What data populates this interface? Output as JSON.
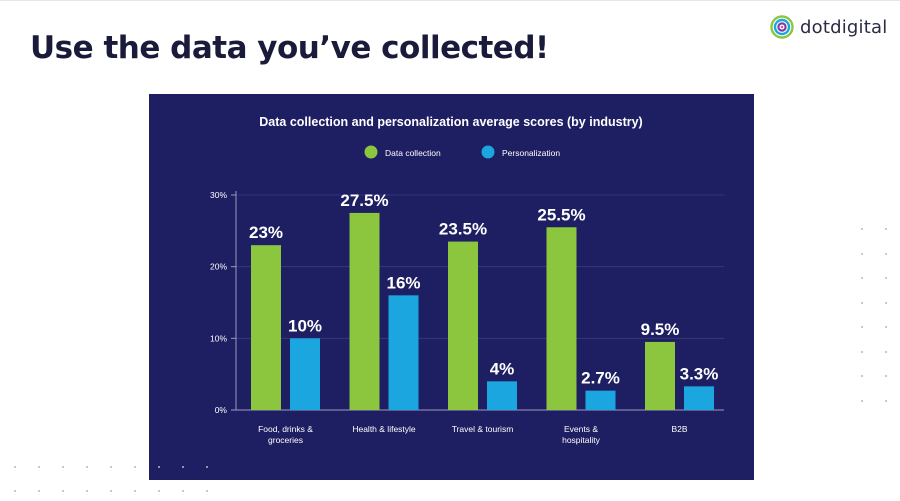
{
  "slide": {
    "title": "Use the data you’ve collected!",
    "brand_name": "dotdigital"
  },
  "colors": {
    "panel_background": "#1e1e62",
    "data_collection": "#8cc63f",
    "personalization": "#1ca6e0",
    "title_text": "#1a1a3b"
  },
  "chart_data": {
    "type": "bar",
    "title": "Data collection and personalization average scores (by industry)",
    "categories": [
      [
        "Food, drinks &",
        "groceries"
      ],
      [
        "Health & lifestyle"
      ],
      [
        "Travel & tourism"
      ],
      [
        "Events &",
        "hospitality"
      ],
      [
        "B2B"
      ]
    ],
    "series": [
      {
        "name": "Data collection",
        "color": "#8cc63f",
        "values": [
          23,
          27.5,
          23.5,
          25.5,
          9.5
        ],
        "labels": [
          "23%",
          "27.5%",
          "23.5%",
          "25.5%",
          "9.5%"
        ]
      },
      {
        "name": "Personalization",
        "color": "#1ca6e0",
        "values": [
          10,
          16,
          4,
          2.7,
          3.3
        ],
        "labels": [
          "10%",
          "16%",
          "4%",
          "2.7%",
          "3.3%"
        ]
      }
    ],
    "ylim": [
      0,
      30
    ],
    "yticks": [
      0,
      10,
      20,
      30
    ],
    "ytick_labels": [
      "0%",
      "10%",
      "20%",
      "30%"
    ],
    "xlabel": "",
    "ylabel": "",
    "grid": true,
    "legend_position": "top-center"
  }
}
